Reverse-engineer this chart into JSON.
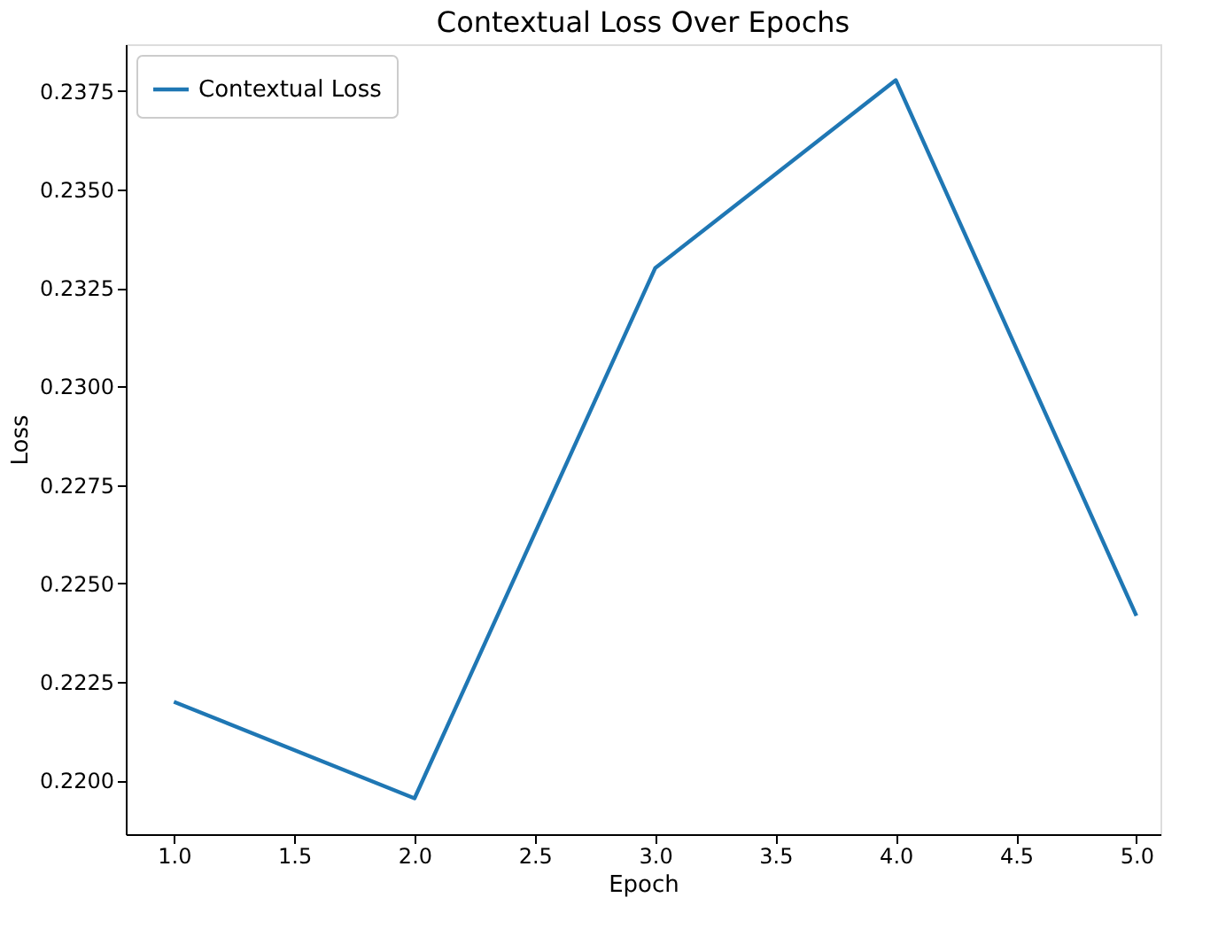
{
  "chart_data": {
    "type": "line",
    "title": "Contextual Loss Over Epochs",
    "xlabel": "Epoch",
    "ylabel": "Loss",
    "x": [
      1,
      2,
      3,
      4,
      5
    ],
    "series": [
      {
        "name": "Contextual Loss",
        "color": "#1f77b4",
        "values": [
          0.222,
          0.21955,
          0.233,
          0.23777,
          0.22418
        ]
      }
    ],
    "xlim": [
      0.8,
      5.1
    ],
    "ylim": [
      0.21864,
      0.23868
    ],
    "xticks": [
      {
        "value": 1,
        "label": "1.0"
      },
      {
        "value": 1.5,
        "label": "1.5"
      },
      {
        "value": 2,
        "label": "2.0"
      },
      {
        "value": 2.5,
        "label": "2.5"
      },
      {
        "value": 3,
        "label": "3.0"
      },
      {
        "value": 3.5,
        "label": "3.5"
      },
      {
        "value": 4,
        "label": "4.0"
      },
      {
        "value": 4.5,
        "label": "4.5"
      },
      {
        "value": 5,
        "label": "5.0"
      }
    ],
    "yticks": [
      {
        "value": 0.22,
        "label": "0.2200"
      },
      {
        "value": 0.2225,
        "label": "0.2225"
      },
      {
        "value": 0.225,
        "label": "0.2250"
      },
      {
        "value": 0.2275,
        "label": "0.2275"
      },
      {
        "value": 0.23,
        "label": "0.2300"
      },
      {
        "value": 0.2325,
        "label": "0.2325"
      },
      {
        "value": 0.235,
        "label": "0.2350"
      },
      {
        "value": 0.2375,
        "label": "0.2375"
      }
    ],
    "grid": false,
    "legend": "top left",
    "marker": "none",
    "line_style": "solid"
  }
}
